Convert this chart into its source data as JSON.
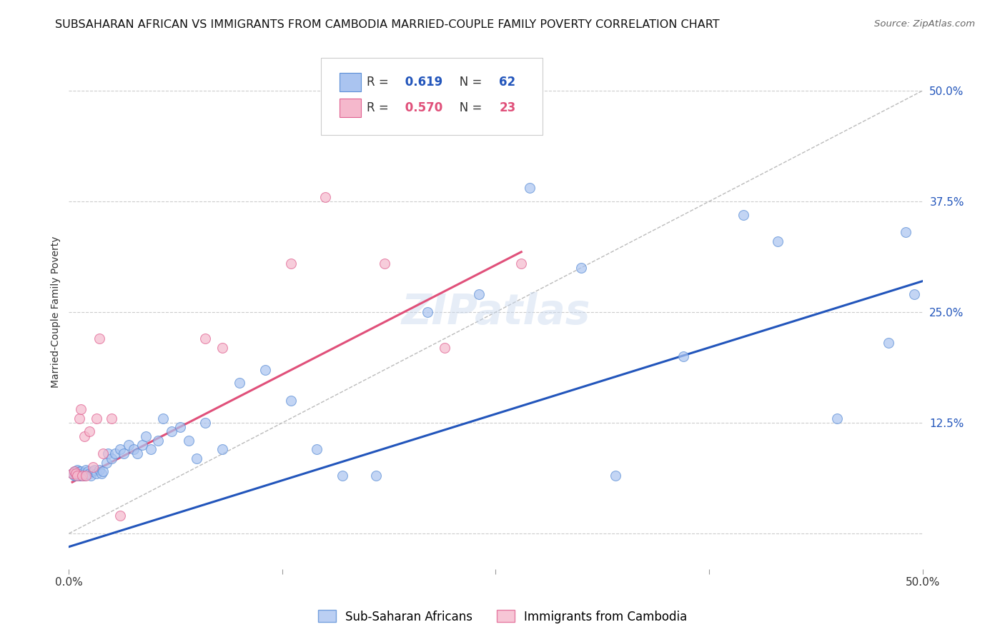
{
  "title": "SUBSAHARAN AFRICAN VS IMMIGRANTS FROM CAMBODIA MARRIED-COUPLE FAMILY POVERTY CORRELATION CHART",
  "source": "Source: ZipAtlas.com",
  "ylabel": "Married-Couple Family Poverty",
  "xlim": [
    0.0,
    0.5
  ],
  "ylim": [
    -0.04,
    0.54
  ],
  "ytick_positions": [
    0.0,
    0.125,
    0.25,
    0.375,
    0.5
  ],
  "ytick_labels_right": [
    "",
    "12.5%",
    "25.0%",
    "37.5%",
    "50.0%"
  ],
  "grid_color": "#cccccc",
  "background_color": "#ffffff",
  "watermark": "ZIPatlas",
  "blue_scatter_x": [
    0.002,
    0.003,
    0.003,
    0.004,
    0.004,
    0.005,
    0.005,
    0.006,
    0.006,
    0.007,
    0.007,
    0.008,
    0.009,
    0.01,
    0.01,
    0.011,
    0.012,
    0.013,
    0.014,
    0.015,
    0.016,
    0.018,
    0.019,
    0.02,
    0.022,
    0.023,
    0.025,
    0.027,
    0.03,
    0.032,
    0.035,
    0.038,
    0.04,
    0.043,
    0.045,
    0.048,
    0.052,
    0.055,
    0.06,
    0.065,
    0.07,
    0.075,
    0.08,
    0.09,
    0.1,
    0.115,
    0.13,
    0.145,
    0.16,
    0.18,
    0.21,
    0.24,
    0.27,
    0.3,
    0.32,
    0.36,
    0.395,
    0.415,
    0.45,
    0.48,
    0.49,
    0.495
  ],
  "blue_scatter_y": [
    0.068,
    0.065,
    0.07,
    0.065,
    0.07,
    0.068,
    0.072,
    0.065,
    0.07,
    0.065,
    0.07,
    0.068,
    0.065,
    0.068,
    0.072,
    0.07,
    0.068,
    0.065,
    0.07,
    0.072,
    0.068,
    0.072,
    0.068,
    0.07,
    0.08,
    0.09,
    0.085,
    0.09,
    0.095,
    0.09,
    0.1,
    0.095,
    0.09,
    0.1,
    0.11,
    0.095,
    0.105,
    0.13,
    0.115,
    0.12,
    0.105,
    0.085,
    0.125,
    0.095,
    0.17,
    0.185,
    0.15,
    0.095,
    0.065,
    0.065,
    0.25,
    0.27,
    0.39,
    0.3,
    0.065,
    0.2,
    0.36,
    0.33,
    0.13,
    0.215,
    0.34,
    0.27
  ],
  "blue_line_x": [
    0.0,
    0.5
  ],
  "blue_line_y": [
    -0.015,
    0.285
  ],
  "blue_color": "#aac4f0",
  "blue_edge_color": "#5b8ed6",
  "blue_line_color": "#2255bb",
  "blue_R": "0.619",
  "blue_N": "62",
  "pink_scatter_x": [
    0.002,
    0.003,
    0.004,
    0.005,
    0.006,
    0.007,
    0.008,
    0.009,
    0.01,
    0.012,
    0.014,
    0.016,
    0.018,
    0.02,
    0.025,
    0.03,
    0.08,
    0.09,
    0.13,
    0.15,
    0.185,
    0.22,
    0.265
  ],
  "pink_scatter_y": [
    0.068,
    0.07,
    0.068,
    0.065,
    0.13,
    0.14,
    0.065,
    0.11,
    0.065,
    0.115,
    0.075,
    0.13,
    0.22,
    0.09,
    0.13,
    0.02,
    0.22,
    0.21,
    0.305,
    0.38,
    0.305,
    0.21,
    0.305
  ],
  "pink_line_x": [
    0.002,
    0.265
  ],
  "pink_line_y": [
    0.058,
    0.318
  ],
  "pink_color": "#f5b8cc",
  "pink_edge_color": "#e06090",
  "pink_line_color": "#e0507a",
  "pink_R": "0.570",
  "pink_N": "23",
  "diagonal_line_x": [
    0.0,
    0.5
  ],
  "diagonal_line_y": [
    0.0,
    0.5
  ],
  "diagonal_color": "#bbbbbb",
  "legend_label_blue": "Sub-Saharan Africans",
  "legend_label_pink": "Immigrants from Cambodia",
  "title_fontsize": 11.5,
  "source_fontsize": 9.5,
  "axis_label_fontsize": 10,
  "tick_fontsize": 11,
  "legend_fontsize": 12,
  "watermark_fontsize": 42,
  "watermark_color": "#c8d8ee",
  "watermark_alpha": 0.45
}
